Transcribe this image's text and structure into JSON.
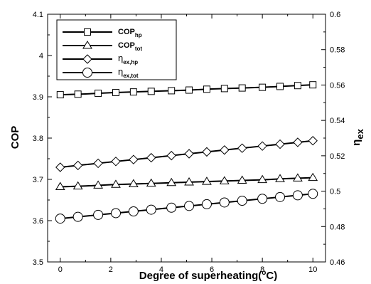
{
  "chart_data": {
    "type": "line",
    "title": "",
    "xlabel": "Degree of superheating(°C)",
    "xlabel_parts": {
      "pre": "Degree of superheating(",
      "sup": "o",
      "post": "C)"
    },
    "ylabel_left": "COP",
    "ylabel_right": {
      "base": "η",
      "sub": "ex"
    },
    "xlim": [
      -0.5,
      10.5
    ],
    "ylim_left": [
      3.5,
      4.1
    ],
    "ylim_right": [
      0.46,
      0.6
    ],
    "x_ticks": [
      0,
      2,
      4,
      6,
      8,
      10
    ],
    "y_left_ticks": [
      3.5,
      3.6,
      3.7,
      3.8,
      3.9,
      4.0,
      4.1
    ],
    "y_left_tick_labels": [
      "3.5",
      "3.6",
      "3.7",
      "3.8",
      "3.9",
      "4",
      "4.1"
    ],
    "y_right_ticks": [
      0.46,
      0.48,
      0.5,
      0.52,
      0.54,
      0.56,
      0.58,
      0.6
    ],
    "y_right_tick_labels": [
      "0.46",
      "0.48",
      "0.5",
      "0.52",
      "0.54",
      "0.56",
      "0.58",
      "0.6"
    ],
    "legend_position": "top-left",
    "x": [
      0,
      1,
      2,
      3,
      4,
      5,
      6,
      7,
      8,
      9,
      10
    ],
    "series": [
      {
        "name": "COP_hp",
        "label": {
          "base": "COP",
          "sub": "hp"
        },
        "axis": "left",
        "marker": "square",
        "values": [
          3.905,
          3.907,
          3.91,
          3.912,
          3.914,
          3.916,
          3.919,
          3.921,
          3.923,
          3.926,
          3.929
        ],
        "marker_x": [
          0,
          0.7,
          1.5,
          2.2,
          2.9,
          3.6,
          4.4,
          5.1,
          5.8,
          6.5,
          7.2,
          8.0,
          8.7,
          9.4,
          10
        ]
      },
      {
        "name": "COP_tot",
        "label": {
          "base": "COP",
          "sub": "tot"
        },
        "axis": "left",
        "marker": "triangle",
        "values": [
          3.682,
          3.684,
          3.687,
          3.689,
          3.691,
          3.693,
          3.695,
          3.697,
          3.699,
          3.702,
          3.704
        ],
        "marker_x": [
          0,
          0.7,
          1.5,
          2.2,
          2.9,
          3.6,
          4.4,
          5.1,
          5.8,
          6.5,
          7.2,
          8.0,
          8.7,
          9.4,
          10
        ]
      },
      {
        "name": "η_ex,hp",
        "label": {
          "base": "η",
          "sub": "ex,hp"
        },
        "axis": "right",
        "marker": "diamond",
        "values": [
          0.5135,
          0.515,
          0.5165,
          0.518,
          0.5195,
          0.521,
          0.5225,
          0.524,
          0.5255,
          0.527,
          0.5285
        ],
        "marker_x": [
          0,
          0.7,
          1.5,
          2.2,
          2.9,
          3.6,
          4.4,
          5.1,
          5.8,
          6.5,
          7.2,
          8.0,
          8.7,
          9.4,
          10
        ]
      },
      {
        "name": "η_ex,tot",
        "label": {
          "base": "η",
          "sub": "ex,tot"
        },
        "axis": "right",
        "marker": "circle",
        "values": [
          0.4845,
          0.4859,
          0.4873,
          0.4887,
          0.4901,
          0.4915,
          0.4929,
          0.4943,
          0.4957,
          0.4971,
          0.4985
        ],
        "marker_x": [
          0,
          0.7,
          1.5,
          2.2,
          2.9,
          3.6,
          4.4,
          5.1,
          5.8,
          6.5,
          7.2,
          8.0,
          8.7,
          9.4,
          10
        ]
      }
    ]
  }
}
